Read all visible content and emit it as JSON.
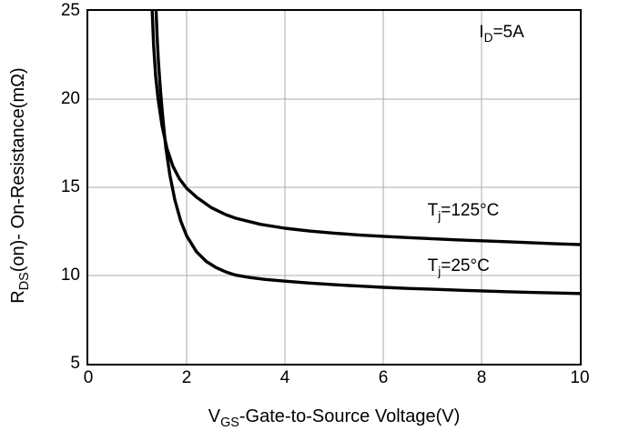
{
  "chart_data": {
    "type": "line",
    "title": "",
    "xlabel": "VGS-Gate-to-Source Voltage(V)",
    "ylabel": "RDS(on)- On-Resistance(mΩ)",
    "xlabel_parts": {
      "base": "V",
      "sub": "GS",
      "rest": "-Gate-to-Source Voltage(V)"
    },
    "ylabel_parts": {
      "base": "R",
      "sub": "DS",
      "rest": "(on)- On-Resistance(mΩ)"
    },
    "xlim": [
      0,
      10
    ],
    "ylim": [
      5,
      25
    ],
    "xticks": [
      0,
      2,
      4,
      6,
      8,
      10
    ],
    "yticks": [
      5,
      10,
      15,
      20,
      25
    ],
    "grid": true,
    "legend_position": "none",
    "annotation": {
      "parts": {
        "base": "I",
        "sub": "D",
        "rest": "=5A"
      },
      "x": 7.95,
      "y": 23.7
    },
    "series": [
      {
        "name": "Tj=125°C",
        "label_parts": {
          "base": "T",
          "sub": "j",
          "rest": "=125°C"
        },
        "label_x": 6.9,
        "label_y": 13.6,
        "points": [
          [
            1.3,
            25.0
          ],
          [
            1.33,
            23.0
          ],
          [
            1.37,
            21.3
          ],
          [
            1.42,
            20.0
          ],
          [
            1.5,
            18.5
          ],
          [
            1.6,
            17.2
          ],
          [
            1.72,
            16.2
          ],
          [
            1.85,
            15.5
          ],
          [
            2.0,
            14.95
          ],
          [
            2.2,
            14.45
          ],
          [
            2.5,
            13.85
          ],
          [
            2.8,
            13.45
          ],
          [
            3.0,
            13.25
          ],
          [
            3.5,
            12.9
          ],
          [
            4.0,
            12.68
          ],
          [
            4.5,
            12.52
          ],
          [
            5.0,
            12.4
          ],
          [
            5.5,
            12.3
          ],
          [
            6.0,
            12.22
          ],
          [
            6.5,
            12.15
          ],
          [
            7.0,
            12.08
          ],
          [
            7.5,
            12.02
          ],
          [
            8.0,
            11.97
          ],
          [
            8.5,
            11.92
          ],
          [
            9.0,
            11.86
          ],
          [
            9.5,
            11.8
          ],
          [
            10.0,
            11.75
          ]
        ]
      },
      {
        "name": "Tj=25°C",
        "label_parts": {
          "base": "T",
          "sub": "j",
          "rest": "=25°C"
        },
        "label_x": 6.9,
        "label_y": 10.45,
        "points": [
          [
            1.38,
            25.0
          ],
          [
            1.4,
            23.5
          ],
          [
            1.43,
            22.0
          ],
          [
            1.47,
            20.4
          ],
          [
            1.52,
            18.8
          ],
          [
            1.58,
            17.2
          ],
          [
            1.66,
            15.7
          ],
          [
            1.76,
            14.3
          ],
          [
            1.88,
            13.1
          ],
          [
            2.0,
            12.25
          ],
          [
            2.2,
            11.35
          ],
          [
            2.4,
            10.8
          ],
          [
            2.6,
            10.45
          ],
          [
            2.8,
            10.2
          ],
          [
            3.0,
            10.02
          ],
          [
            3.3,
            9.88
          ],
          [
            3.6,
            9.78
          ],
          [
            4.0,
            9.68
          ],
          [
            4.5,
            9.57
          ],
          [
            5.0,
            9.48
          ],
          [
            5.5,
            9.4
          ],
          [
            6.0,
            9.33
          ],
          [
            6.5,
            9.27
          ],
          [
            7.0,
            9.22
          ],
          [
            7.5,
            9.17
          ],
          [
            8.0,
            9.13
          ],
          [
            8.5,
            9.08
          ],
          [
            9.0,
            9.04
          ],
          [
            9.5,
            9.01
          ],
          [
            10.0,
            8.98
          ]
        ]
      }
    ],
    "colors": {
      "curve": "#000000",
      "grid": "#ababab",
      "frame": "#000000",
      "text": "#000000"
    }
  }
}
